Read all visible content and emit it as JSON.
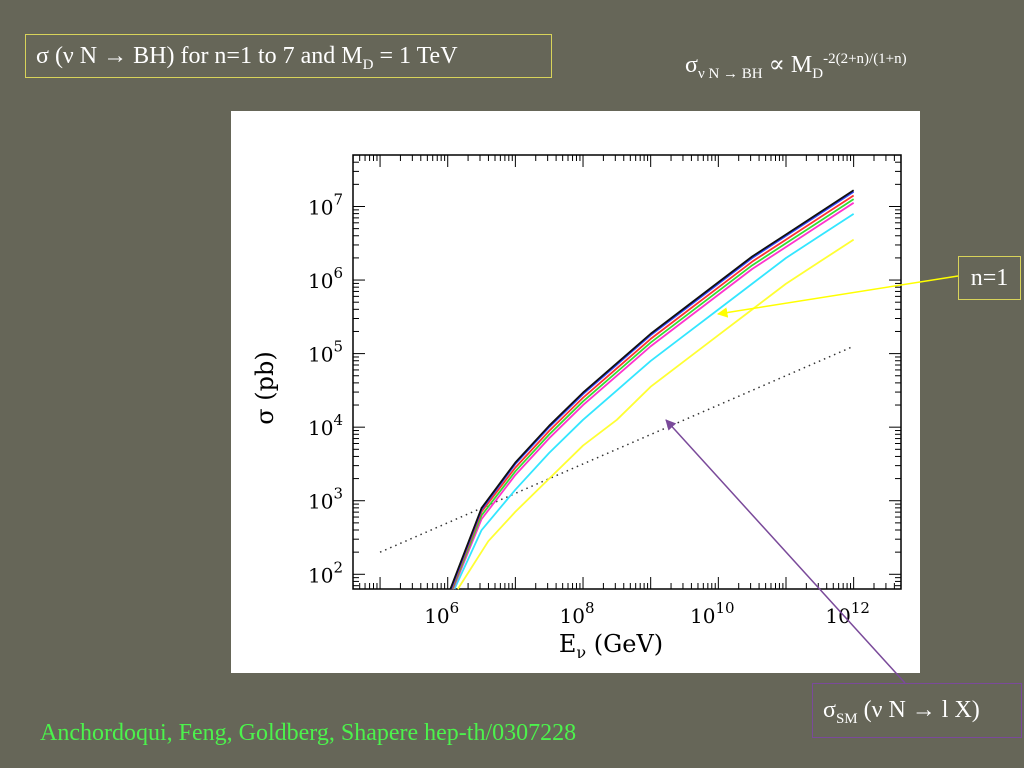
{
  "slide": {
    "title": {
      "sigma": "σ",
      "pre": " (ν N → BH) for n=1 to 7 and M",
      "sub": "D",
      "post": " = 1 TeV"
    },
    "formula": {
      "sigma": "σ",
      "sub": "ν N → BH",
      "mid": " ∝ M",
      "msub": "D",
      "sup": "-2(2+n)/(1+n)"
    },
    "n1_label": "n=1",
    "sm_label": {
      "sigma": "σ",
      "sub": "SM",
      "text": " (ν N → l X)"
    },
    "citation": "Anchordoqui, Feng, Goldberg, Shapere hep-th/0307228",
    "colors": {
      "background": "#666658",
      "box_border": "#d8d35a",
      "citation": "#4cf24c",
      "sm_arrow": "#7a4a9a",
      "n1_arrow": "#ffff00"
    }
  },
  "chart_data": {
    "type": "line",
    "xlabel": "E",
    "xlabel_sub": "ν",
    "xlabel_unit": " (GeV)",
    "ylabel": "σ (pb)",
    "x_log": true,
    "y_log": true,
    "xlim_log10": [
      4.6,
      12.7
    ],
    "ylim_log10": [
      1.8,
      7.7
    ],
    "x_ticks": [
      {
        "base": "10",
        "exp": "6",
        "log10": 6
      },
      {
        "base": "10",
        "exp": "8",
        "log10": 8
      },
      {
        "base": "10",
        "exp": "10",
        "log10": 10
      },
      {
        "base": "10",
        "exp": "12",
        "log10": 12
      }
    ],
    "y_ticks": [
      {
        "base": "10",
        "exp": "2",
        "log10": 2
      },
      {
        "base": "10",
        "exp": "3",
        "log10": 3
      },
      {
        "base": "10",
        "exp": "4",
        "log10": 4
      },
      {
        "base": "10",
        "exp": "5",
        "log10": 5
      },
      {
        "base": "10",
        "exp": "6",
        "log10": 6
      },
      {
        "base": "10",
        "exp": "7",
        "log10": 7
      }
    ],
    "series": [
      {
        "color": "#ffff33",
        "x_log10": [
          6.15,
          6.6,
          7,
          7.5,
          8,
          8.5,
          9,
          9.5,
          10,
          10.5,
          11,
          11.5,
          12
        ],
        "y_log10": [
          1.8,
          2.45,
          2.85,
          3.3,
          3.75,
          4.1,
          4.55,
          4.9,
          5.25,
          5.6,
          5.95,
          6.25,
          6.55
        ]
      },
      {
        "color": "#33e6ff",
        "x_log10": [
          6.1,
          6.5,
          7,
          7.5,
          8,
          8.5,
          9,
          9.5,
          10,
          10.5,
          11,
          11.5,
          12
        ],
        "y_log10": [
          1.8,
          2.6,
          3.15,
          3.65,
          4.1,
          4.5,
          4.9,
          5.25,
          5.6,
          5.95,
          6.3,
          6.6,
          6.9
        ]
      },
      {
        "color": "#ff33cc",
        "x_log10": [
          6.08,
          6.5,
          7,
          7.5,
          8,
          8.5,
          9,
          9.5,
          10,
          10.5,
          11,
          11.5,
          12
        ],
        "y_log10": [
          1.8,
          2.75,
          3.35,
          3.85,
          4.3,
          4.7,
          5.1,
          5.45,
          5.8,
          6.15,
          6.45,
          6.75,
          7.05
        ]
      },
      {
        "color": "#33dd33",
        "x_log10": [
          6.07,
          6.5,
          7,
          7.5,
          8,
          8.5,
          9,
          9.5,
          10,
          10.5,
          11,
          11.5,
          12
        ],
        "y_log10": [
          1.8,
          2.8,
          3.4,
          3.9,
          4.35,
          4.75,
          5.15,
          5.5,
          5.85,
          6.2,
          6.5,
          6.8,
          7.1
        ]
      },
      {
        "color": "#ff3333",
        "x_log10": [
          6.06,
          6.5,
          7,
          7.5,
          8,
          8.5,
          9,
          9.5,
          10,
          10.5,
          11,
          11.5,
          12
        ],
        "y_log10": [
          1.8,
          2.85,
          3.45,
          3.95,
          4.4,
          4.8,
          5.2,
          5.55,
          5.9,
          6.25,
          6.55,
          6.85,
          7.15
        ]
      },
      {
        "color": "#3344ff",
        "x_log10": [
          6.05,
          6.5,
          7,
          7.5,
          8,
          8.5,
          9,
          9.5,
          10,
          10.5,
          11,
          11.5,
          12
        ],
        "y_log10": [
          1.8,
          2.88,
          3.5,
          4.0,
          4.45,
          4.85,
          5.25,
          5.6,
          5.95,
          6.3,
          6.6,
          6.9,
          7.2
        ]
      },
      {
        "color": "#111111",
        "x_log10": [
          6.04,
          6.5,
          7,
          7.5,
          8,
          8.5,
          9,
          9.5,
          10,
          10.5,
          11,
          11.5,
          12
        ],
        "y_log10": [
          1.8,
          2.9,
          3.52,
          4.02,
          4.47,
          4.87,
          5.27,
          5.62,
          5.97,
          6.32,
          6.62,
          6.92,
          7.22
        ]
      }
    ],
    "reference_series": {
      "style": "dotted",
      "color": "#333333",
      "x_log10": [
        5,
        12
      ],
      "y_log10": [
        2.3,
        5.1
      ]
    }
  }
}
